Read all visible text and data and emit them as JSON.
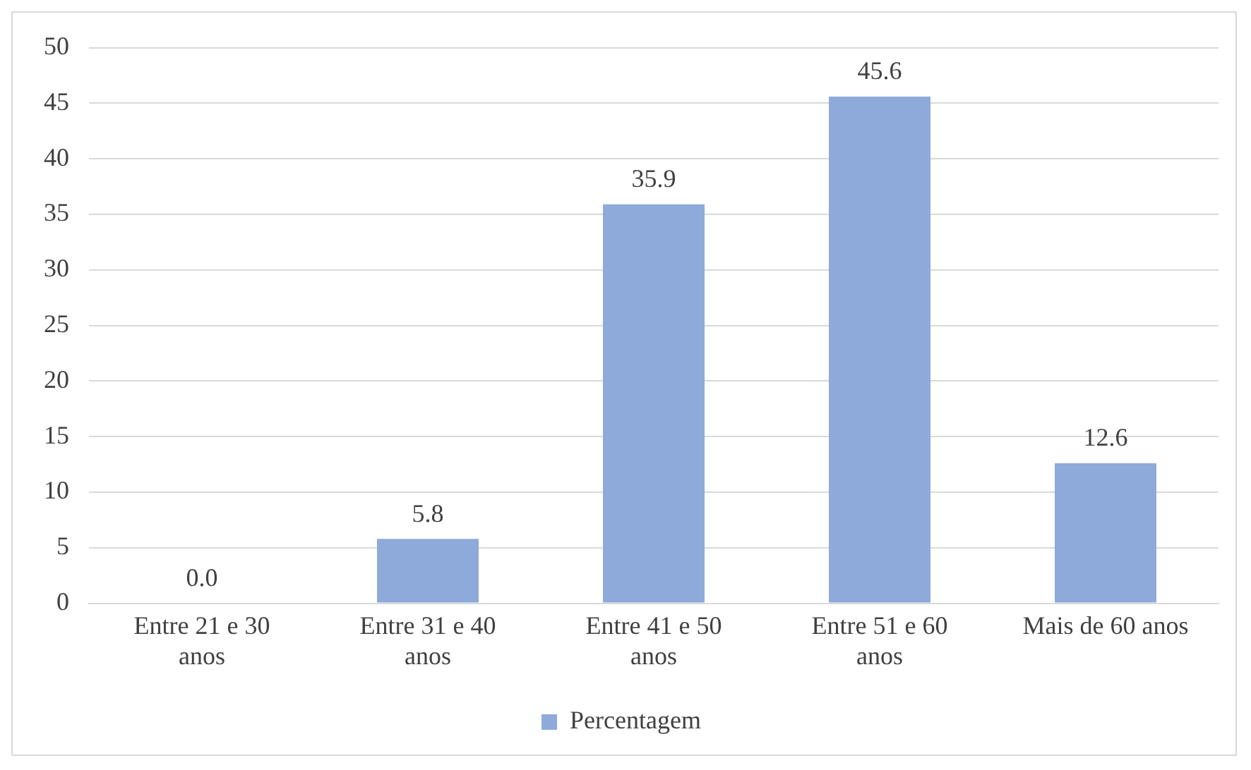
{
  "chart_data": {
    "type": "bar",
    "categories": [
      "Entre 21 e 30 anos",
      "Entre 31 e 40 anos",
      "Entre 41 e 50 anos",
      "Entre 51 e 60 anos",
      "Mais de 60 anos"
    ],
    "series": [
      {
        "name": "Percentagem",
        "color": "#8eaadb",
        "values": [
          0.0,
          5.8,
          35.9,
          45.6,
          12.6
        ],
        "value_labels": [
          "0.0",
          "5.8",
          "35.9",
          "45.6",
          "12.6"
        ]
      }
    ],
    "ylim": [
      0,
      50
    ],
    "yticks": [
      0,
      5,
      10,
      15,
      20,
      25,
      30,
      35,
      40,
      45,
      50
    ],
    "grid": "y",
    "legend": "bottom"
  }
}
